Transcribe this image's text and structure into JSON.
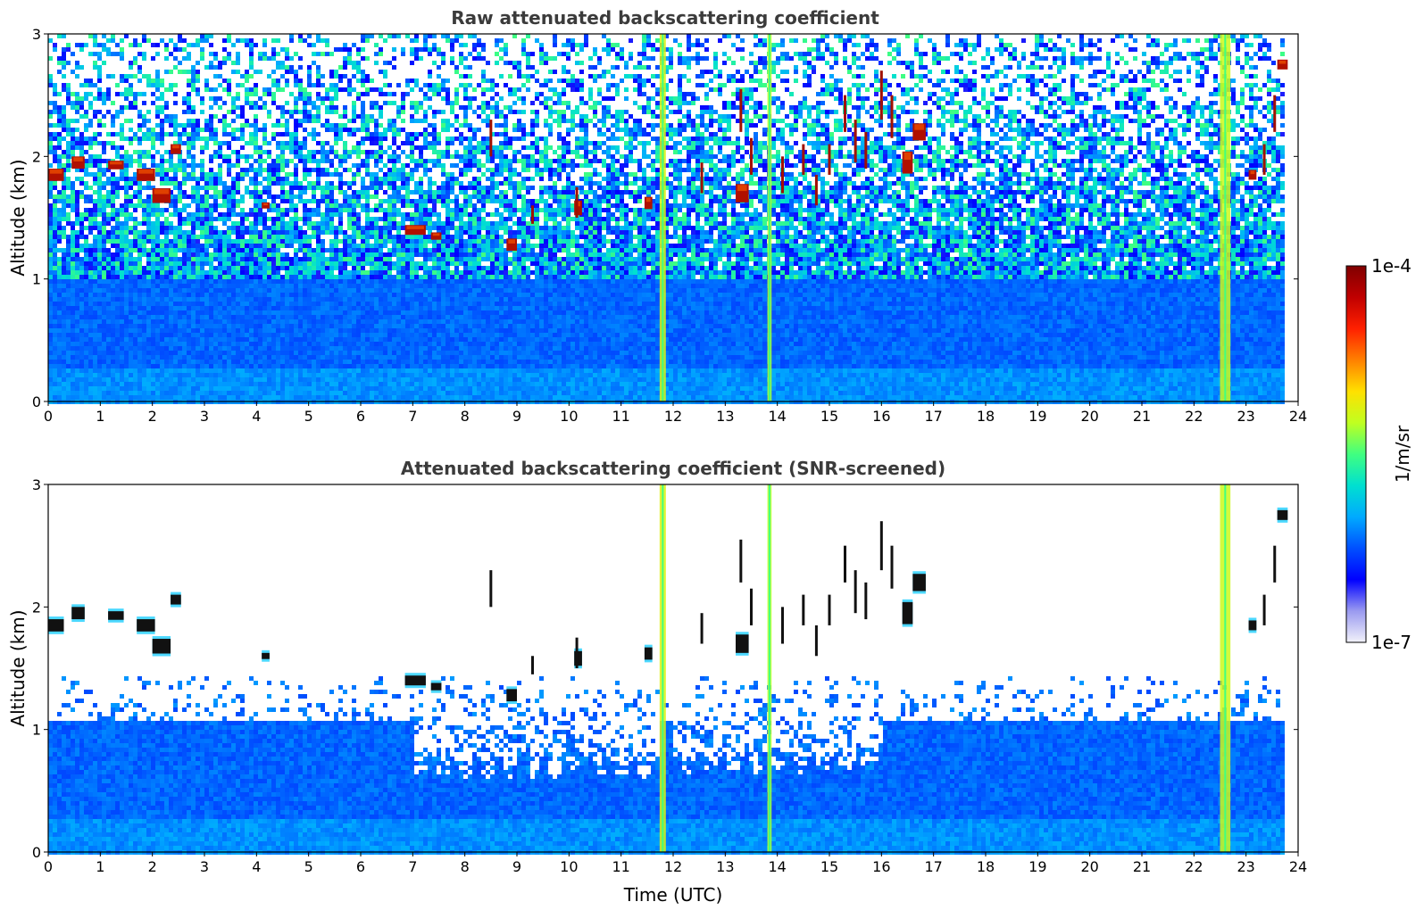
{
  "chart_data": [
    {
      "type": "heatmap",
      "title": "Raw attenuated backscattering coefficient",
      "xlabel": "",
      "ylabel": "Altitude (km)",
      "xlim": [
        0,
        24
      ],
      "ylim": [
        0,
        3
      ],
      "x_ticks": [
        "0",
        "1",
        "2",
        "3",
        "4",
        "5",
        "6",
        "7",
        "8",
        "9",
        "10",
        "11",
        "12",
        "13",
        "14",
        "15",
        "16",
        "17",
        "18",
        "19",
        "20",
        "21",
        "22",
        "23",
        "24"
      ],
      "y_ticks": [
        "0",
        "1",
        "2",
        "3"
      ],
      "screened": false,
      "aerosol_layer_top_km": 1.0,
      "vertical_plumes_utc": [
        {
          "t": 11.8,
          "width_h": 0.12,
          "level": 0.62
        },
        {
          "t": 13.85,
          "width_h": 0.08,
          "level": 0.58
        },
        {
          "t": 22.6,
          "width_h": 0.2,
          "level": 0.6
        }
      ],
      "cloud_patches": [
        {
          "t0": 0.0,
          "t1": 0.3,
          "alt": 1.85,
          "thickness_km": 0.1
        },
        {
          "t0": 0.45,
          "t1": 0.7,
          "alt": 1.95,
          "thickness_km": 0.1
        },
        {
          "t0": 1.15,
          "t1": 1.45,
          "alt": 1.93,
          "thickness_km": 0.07
        },
        {
          "t0": 1.7,
          "t1": 2.05,
          "alt": 1.85,
          "thickness_km": 0.1
        },
        {
          "t0": 2.0,
          "t1": 2.35,
          "alt": 1.68,
          "thickness_km": 0.12
        },
        {
          "t0": 2.35,
          "t1": 2.55,
          "alt": 2.06,
          "thickness_km": 0.08
        },
        {
          "t0": 4.1,
          "t1": 4.25,
          "alt": 1.6,
          "thickness_km": 0.05
        },
        {
          "t0": 6.85,
          "t1": 7.25,
          "alt": 1.4,
          "thickness_km": 0.08
        },
        {
          "t0": 7.35,
          "t1": 7.55,
          "alt": 1.35,
          "thickness_km": 0.06
        },
        {
          "t0": 8.8,
          "t1": 9.0,
          "alt": 1.28,
          "thickness_km": 0.1
        },
        {
          "t0": 10.1,
          "t1": 10.25,
          "alt": 1.58,
          "thickness_km": 0.12
        },
        {
          "t0": 11.45,
          "t1": 11.6,
          "alt": 1.62,
          "thickness_km": 0.1
        },
        {
          "t0": 13.2,
          "t1": 13.45,
          "alt": 1.7,
          "thickness_km": 0.15
        },
        {
          "t0": 16.4,
          "t1": 16.6,
          "alt": 1.95,
          "thickness_km": 0.18
        },
        {
          "t0": 16.6,
          "t1": 16.85,
          "alt": 2.2,
          "thickness_km": 0.14
        },
        {
          "t0": 23.05,
          "t1": 23.2,
          "alt": 1.85,
          "thickness_km": 0.08
        },
        {
          "t0": 23.6,
          "t1": 23.8,
          "alt": 2.75,
          "thickness_km": 0.08
        }
      ],
      "virga_streaks": [
        {
          "t": 8.5,
          "top": 2.3,
          "bottom": 2.0
        },
        {
          "t": 9.3,
          "top": 1.6,
          "bottom": 1.45
        },
        {
          "t": 10.15,
          "top": 1.75,
          "bottom": 1.5
        },
        {
          "t": 12.55,
          "top": 1.95,
          "bottom": 1.7
        },
        {
          "t": 13.3,
          "top": 2.55,
          "bottom": 2.2
        },
        {
          "t": 13.5,
          "top": 2.15,
          "bottom": 1.85
        },
        {
          "t": 14.1,
          "top": 2.0,
          "bottom": 1.7
        },
        {
          "t": 14.5,
          "top": 2.1,
          "bottom": 1.85
        },
        {
          "t": 14.75,
          "top": 1.85,
          "bottom": 1.6
        },
        {
          "t": 15.0,
          "top": 2.1,
          "bottom": 1.85
        },
        {
          "t": 15.3,
          "top": 2.5,
          "bottom": 2.2
        },
        {
          "t": 15.5,
          "top": 2.3,
          "bottom": 1.95
        },
        {
          "t": 15.7,
          "top": 2.2,
          "bottom": 1.9
        },
        {
          "t": 16.0,
          "top": 2.7,
          "bottom": 2.3
        },
        {
          "t": 16.2,
          "top": 2.5,
          "bottom": 2.15
        },
        {
          "t": 23.35,
          "top": 2.1,
          "bottom": 1.85
        },
        {
          "t": 23.55,
          "top": 2.5,
          "bottom": 2.2
        }
      ]
    },
    {
      "type": "heatmap",
      "title": "Attenuated backscattering coefficient (SNR-screened)",
      "xlabel": "Time (UTC)",
      "ylabel": "Altitude (km)",
      "xlim": [
        0,
        24
      ],
      "ylim": [
        0,
        3
      ],
      "x_ticks": [
        "0",
        "1",
        "2",
        "3",
        "4",
        "5",
        "6",
        "7",
        "8",
        "9",
        "10",
        "11",
        "12",
        "13",
        "14",
        "15",
        "16",
        "17",
        "18",
        "19",
        "20",
        "21",
        "22",
        "23",
        "24"
      ],
      "y_ticks": [
        "0",
        "1",
        "2",
        "3"
      ],
      "screened": true,
      "aerosol_layer_top_km": 1.1,
      "vertical_plumes_utc": [
        {
          "t": 11.8,
          "width_h": 0.12,
          "level": 0.62
        },
        {
          "t": 13.85,
          "width_h": 0.08,
          "level": 0.58
        },
        {
          "t": 22.6,
          "width_h": 0.2,
          "level": 0.6
        }
      ],
      "screened_gaps": [
        {
          "t0": 7.0,
          "t1": 11.7,
          "depth_km": 0.5
        },
        {
          "t0": 12.0,
          "t1": 16.0,
          "depth_km": 0.45
        }
      ]
    }
  ],
  "colorbar": {
    "label": "1/m/sr",
    "max_label": "1e-4",
    "min_label": "1e-7",
    "colormap": [
      "#f2f2fa",
      "#9a9af0",
      "#0000ff",
      "#0050ff",
      "#00aaff",
      "#00e0d0",
      "#40ff80",
      "#c0ff20",
      "#ffe000",
      "#ff8000",
      "#ff2000",
      "#c00000",
      "#800000"
    ],
    "scale": "log"
  }
}
